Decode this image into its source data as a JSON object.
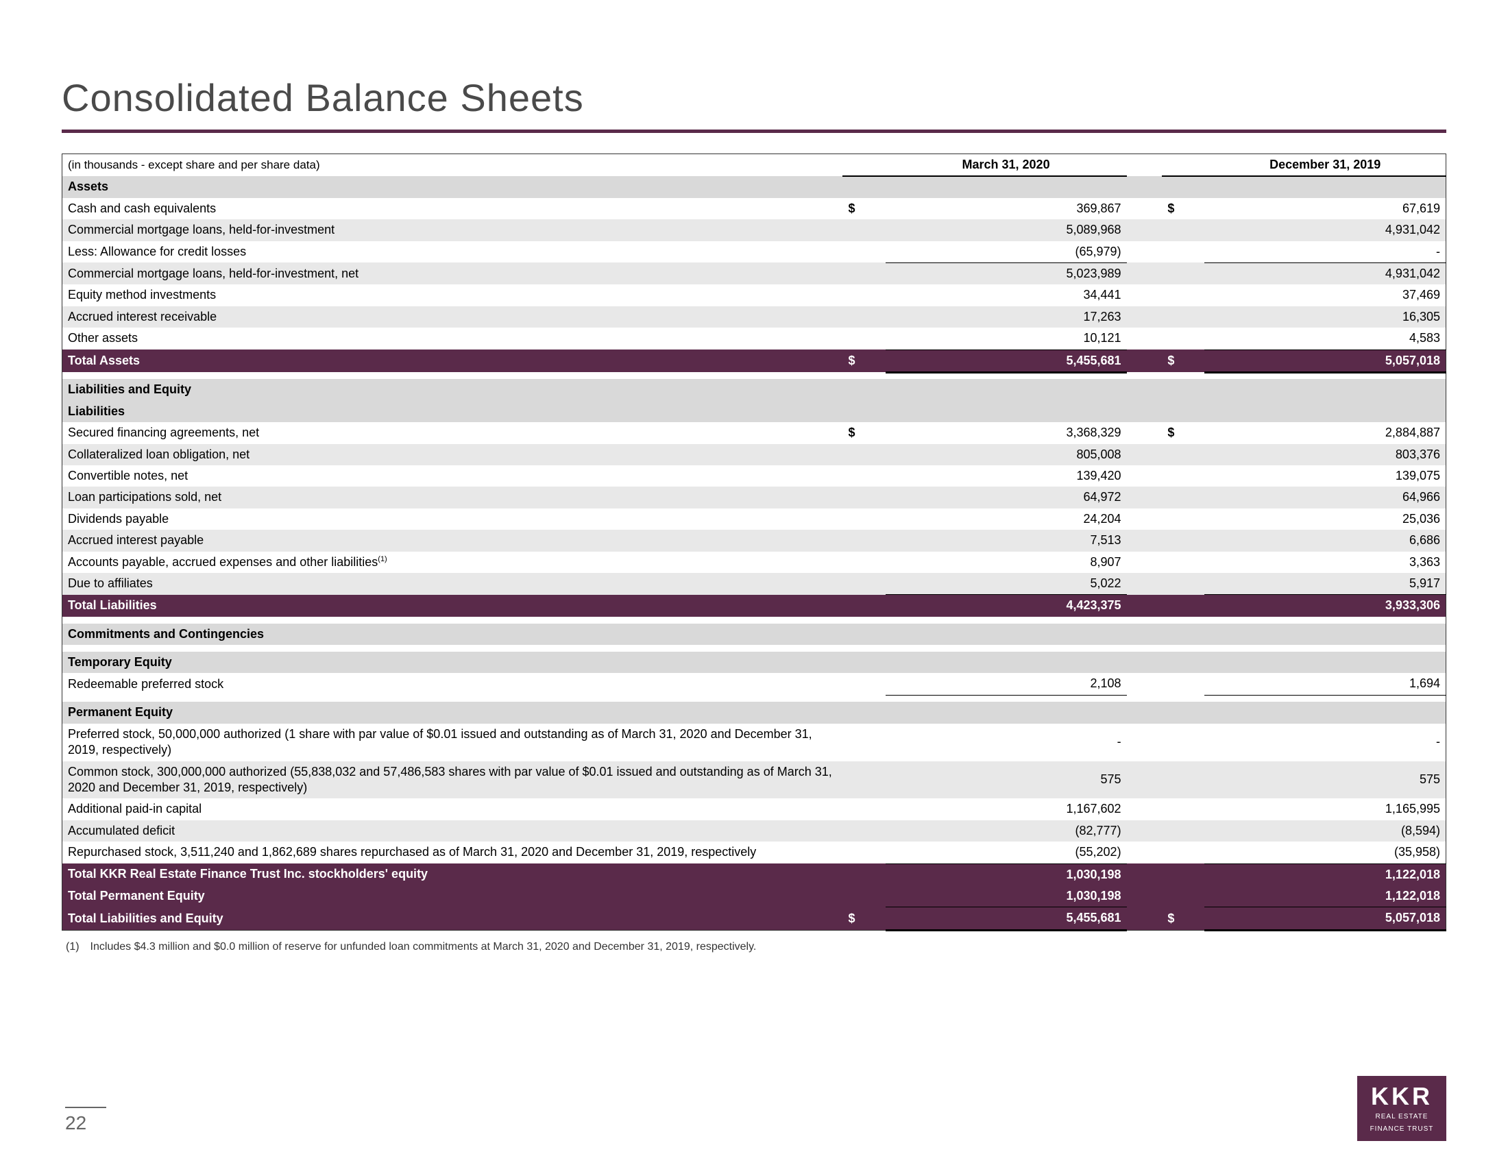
{
  "title": "Consolidated Balance Sheets",
  "subtitle": "(in thousands - except share and per share data)",
  "columns": {
    "c1": "March 31, 2020",
    "c2": "December 31, 2019"
  },
  "sections": {
    "assets_header": "Assets",
    "liab_eq_header": "Liabilities and Equity",
    "liab_header": "Liabilities",
    "commit_header": "Commitments and Contingencies",
    "temp_eq_header": "Temporary Equity",
    "perm_eq_header": "Permanent Equity"
  },
  "rows": {
    "cash": {
      "label": "Cash and cash equivalents",
      "s1": "$",
      "v1": "369,867",
      "s2": "$",
      "v2": "67,619"
    },
    "cml": {
      "label": "Commercial mortgage loans, held-for-investment",
      "v1": "5,089,968",
      "v2": "4,931,042"
    },
    "allow": {
      "label": "Less: Allowance for credit losses",
      "v1": "(65,979)",
      "v2": "-"
    },
    "cml_net": {
      "label": "Commercial mortgage loans, held-for-investment, net",
      "v1": "5,023,989",
      "v2": "4,931,042"
    },
    "eq_method": {
      "label": "Equity method investments",
      "v1": "34,441",
      "v2": "37,469"
    },
    "accr_int_rec": {
      "label": "Accrued interest receivable",
      "v1": "17,263",
      "v2": "16,305"
    },
    "other": {
      "label": "Other assets",
      "v1": "10,121",
      "v2": "4,583"
    },
    "tot_assets": {
      "label": "Total Assets",
      "s1": "$",
      "v1": "5,455,681",
      "s2": "$",
      "v2": "5,057,018"
    },
    "secured": {
      "label": "Secured financing agreements, net",
      "s1": "$",
      "v1": "3,368,329",
      "s2": "$",
      "v2": "2,884,887"
    },
    "clo": {
      "label": "Collateralized loan obligation, net",
      "v1": "805,008",
      "v2": "803,376"
    },
    "conv": {
      "label": "Convertible notes, net",
      "v1": "139,420",
      "v2": "139,075"
    },
    "loan_part": {
      "label": "Loan participations sold, net",
      "v1": "64,972",
      "v2": "64,966"
    },
    "div_pay": {
      "label": "Dividends payable",
      "v1": "24,204",
      "v2": "25,036"
    },
    "accr_int_pay": {
      "label": "Accrued interest payable",
      "v1": "7,513",
      "v2": "6,686"
    },
    "ap": {
      "label_html": "Accounts payable, accrued expenses and other liabilities",
      "sup": "(1)",
      "v1": "8,907",
      "v2": "3,363"
    },
    "affil": {
      "label": "Due to affiliates",
      "v1": "5,022",
      "v2": "5,917"
    },
    "tot_liab": {
      "label": "Total Liabilities",
      "v1": "4,423,375",
      "v2": "3,933,306"
    },
    "redeem": {
      "label": "Redeemable preferred stock",
      "v1": "2,108",
      "v2": "1,694"
    },
    "pref": {
      "label": "Preferred stock, 50,000,000 authorized (1 share with par value of $0.01 issued and outstanding as of March 31, 2020 and December 31, 2019, respectively)",
      "v1": "-",
      "v2": "-"
    },
    "common": {
      "label": "Common stock, 300,000,000 authorized (55,838,032 and 57,486,583 shares with par value of $0.01 issued and outstanding as of March 31, 2020 and December 31, 2019, respectively)",
      "v1": "575",
      "v2": "575"
    },
    "apic": {
      "label": "Additional paid-in capital",
      "v1": "1,167,602",
      "v2": "1,165,995"
    },
    "acc_def": {
      "label": "Accumulated deficit",
      "v1": "(82,777)",
      "v2": "(8,594)"
    },
    "repo": {
      "label": "Repurchased stock, 3,511,240 and 1,862,689 shares repurchased as of March 31, 2020 and December 31, 2019, respectively",
      "v1": "(55,202)",
      "v2": "(35,958)"
    },
    "tot_stk": {
      "label": "Total KKR Real Estate Finance Trust Inc. stockholders' equity",
      "v1": "1,030,198",
      "v2": "1,122,018"
    },
    "tot_perm": {
      "label": "Total Permanent Equity",
      "v1": "1,030,198",
      "v2": "1,122,018"
    },
    "tot_le": {
      "label": "Total Liabilities and Equity",
      "s1": "$",
      "v1": "5,455,681",
      "s2": "$",
      "v2": "5,057,018"
    }
  },
  "footnote": "(1) Includes $4.3 million and $0.0 million of reserve for unfunded loan commitments at March 31, 2020 and December 31, 2019, respectively.",
  "page_number": "22",
  "logo": {
    "main": "KKR",
    "sub1": "REAL ESTATE",
    "sub2": "FINANCE TRUST"
  },
  "colors": {
    "purple": "#5a2a4a",
    "grey_section": "#d9d9d9",
    "grey_row": "#e8e8e8"
  }
}
